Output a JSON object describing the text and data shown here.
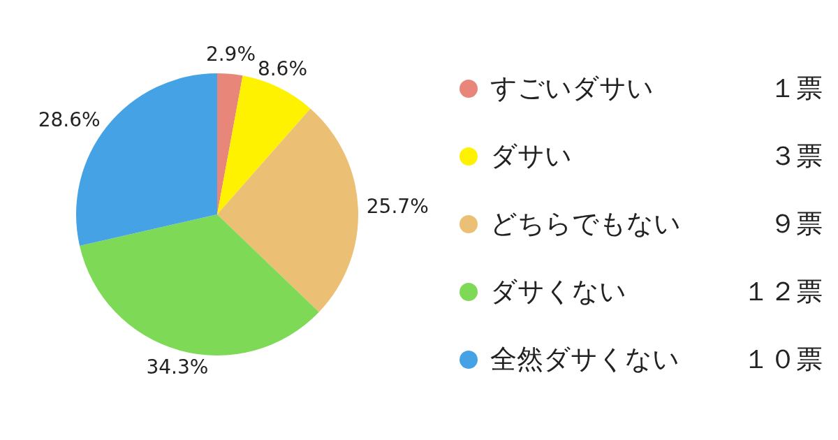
{
  "chart_data": {
    "type": "pie",
    "categories": [
      "すごいダサい",
      "ダサい",
      "どちらでもない",
      "ダサくない",
      "全然ダサくない"
    ],
    "values": [
      2.9,
      8.6,
      25.7,
      34.3,
      28.6
    ],
    "colors": [
      "#e8867a",
      "#fff200",
      "#ebc074",
      "#7ed957",
      "#45a3e5"
    ],
    "value_labels": [
      "2.9%",
      "8.6%",
      "25.7%",
      "34.3%",
      "28.6%"
    ],
    "annotations": [
      "１票",
      "３票",
      "９票",
      "１２票",
      "１０票"
    ],
    "legend": "right"
  }
}
